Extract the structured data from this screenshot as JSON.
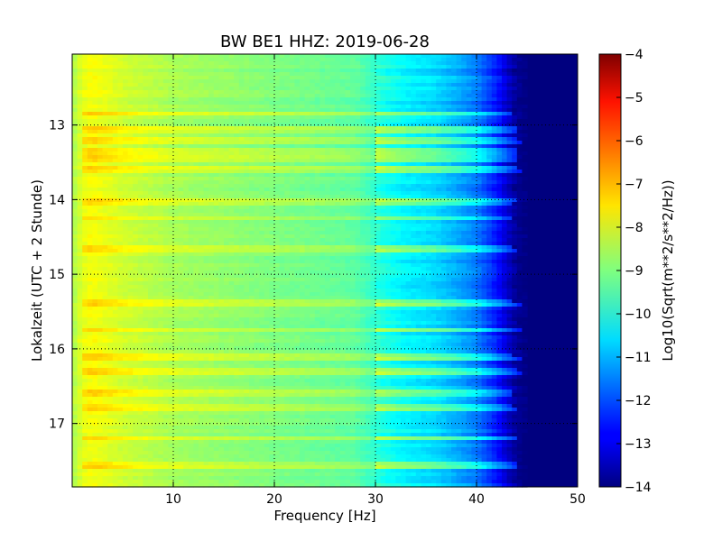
{
  "chart_data": {
    "type": "heatmap",
    "title": "BW BE1 HHZ: 2019-06-28",
    "xlabel": "Frequency [Hz]",
    "ylabel": "Lokalzeit (UTC + 2 Stunde)",
    "xlim": [
      0,
      50
    ],
    "ylim": [
      12.05,
      17.85
    ],
    "x_ticks": [
      10,
      20,
      30,
      40,
      50
    ],
    "y_ticks": [
      13,
      14,
      15,
      16,
      17
    ],
    "y_inverted": true,
    "grid": true,
    "colormap": "jet",
    "colorbar": {
      "label": "Log10(Sqrt(m**2/s**2/Hz))",
      "range": [
        -14,
        -4
      ],
      "ticks": [
        -4,
        -5,
        -6,
        -7,
        -8,
        -9,
        -10,
        -11,
        -12,
        -13,
        -14
      ]
    },
    "spectrum_profile": {
      "frequency": [
        0,
        1,
        2,
        5,
        10,
        20,
        28,
        31,
        33,
        36,
        38,
        40,
        42,
        43,
        44,
        45,
        46,
        50
      ],
      "level": [
        -8.6,
        -8.0,
        -7.8,
        -8.2,
        -8.6,
        -9.0,
        -9.3,
        -10.0,
        -10.3,
        -10.6,
        -11.0,
        -11.5,
        -12.5,
        -13.2,
        -13.8,
        -14,
        -14,
        -14
      ]
    },
    "high_amplitude_times": [
      12.85,
      13.05,
      13.2,
      13.35,
      13.45,
      13.6,
      14.05,
      14.25,
      14.65,
      15.4,
      15.75,
      16.1,
      16.3,
      16.6,
      16.8,
      17.2,
      17.55
    ]
  }
}
